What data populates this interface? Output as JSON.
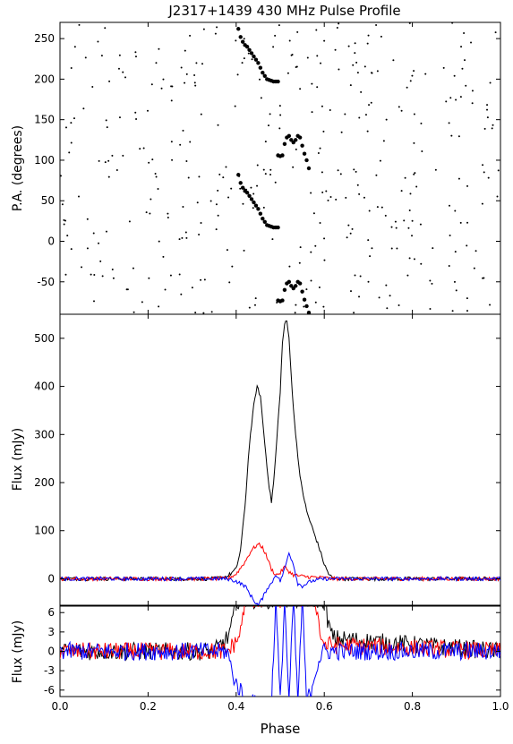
{
  "chart_data": [
    {
      "type": "scatter",
      "title": "J2317+1439 430 MHz Pulse Profile",
      "ylabel": "P.A. (degrees)",
      "xlim": [
        0.0,
        1.0
      ],
      "ylim": [
        -90,
        270
      ],
      "yticks": [
        -50,
        0,
        50,
        100,
        150,
        200,
        250
      ],
      "grid": false,
      "series": [
        {
          "role": "pa-main",
          "points": [
            [
              0.405,
              262
            ],
            [
              0.41,
              252
            ],
            [
              0.415,
              246
            ],
            [
              0.42,
              242
            ],
            [
              0.425,
              240
            ],
            [
              0.43,
              236
            ],
            [
              0.435,
              232
            ],
            [
              0.44,
              228
            ],
            [
              0.445,
              224
            ],
            [
              0.45,
              220
            ],
            [
              0.455,
              214
            ],
            [
              0.46,
              208
            ],
            [
              0.465,
              204
            ],
            [
              0.47,
              200
            ],
            [
              0.475,
              199
            ],
            [
              0.48,
              198
            ],
            [
              0.485,
              197
            ],
            [
              0.49,
              197
            ],
            [
              0.495,
              197
            ],
            [
              0.405,
              82
            ],
            [
              0.41,
              72
            ],
            [
              0.415,
              66
            ],
            [
              0.42,
              62
            ],
            [
              0.425,
              60
            ],
            [
              0.43,
              56
            ],
            [
              0.435,
              52
            ],
            [
              0.44,
              48
            ],
            [
              0.445,
              44
            ],
            [
              0.45,
              40
            ],
            [
              0.455,
              34
            ],
            [
              0.46,
              28
            ],
            [
              0.465,
              24
            ],
            [
              0.47,
              20
            ],
            [
              0.475,
              19
            ],
            [
              0.48,
              18
            ],
            [
              0.485,
              17
            ],
            [
              0.49,
              17
            ],
            [
              0.495,
              17
            ]
          ]
        },
        {
          "role": "pa-second",
          "points": [
            [
              0.495,
              106
            ],
            [
              0.5,
              105
            ],
            [
              0.505,
              106
            ],
            [
              0.51,
              120
            ],
            [
              0.515,
              128
            ],
            [
              0.52,
              130
            ],
            [
              0.525,
              125
            ],
            [
              0.53,
              122
            ],
            [
              0.535,
              125
            ],
            [
              0.54,
              130
            ],
            [
              0.545,
              128
            ],
            [
              0.55,
              118
            ],
            [
              0.555,
              108
            ],
            [
              0.56,
              100
            ],
            [
              0.565,
              90
            ],
            [
              0.495,
              -73
            ],
            [
              0.5,
              -74
            ],
            [
              0.505,
              -73
            ],
            [
              0.51,
              -60
            ],
            [
              0.515,
              -52
            ],
            [
              0.52,
              -50
            ],
            [
              0.525,
              -55
            ],
            [
              0.53,
              -58
            ],
            [
              0.535,
              -55
            ],
            [
              0.54,
              -50
            ],
            [
              0.545,
              -52
            ],
            [
              0.55,
              -62
            ],
            [
              0.555,
              -72
            ],
            [
              0.56,
              -80
            ],
            [
              0.565,
              -88
            ]
          ]
        }
      ]
    },
    {
      "type": "line",
      "ylabel": "Flux (mJy)",
      "xlim": [
        0.0,
        1.0
      ],
      "ylim": [
        -55,
        550
      ],
      "yticks": [
        0,
        100,
        200,
        300,
        400,
        500
      ],
      "grid": false,
      "series": [
        {
          "color": "#000000",
          "x": [
            0.0,
            0.35,
            0.38,
            0.4,
            0.41,
            0.42,
            0.43,
            0.44,
            0.447,
            0.455,
            0.465,
            0.475,
            0.48,
            0.485,
            0.49,
            0.5,
            0.505,
            0.51,
            0.515,
            0.52,
            0.53,
            0.545,
            0.56,
            0.575,
            0.59,
            0.6,
            0.61,
            0.62,
            1.0
          ],
          "y": [
            0,
            0,
            5,
            20,
            60,
            150,
            280,
            360,
            400,
            380,
            280,
            190,
            160,
            200,
            260,
            390,
            490,
            530,
            535,
            500,
            350,
            210,
            140,
            100,
            60,
            30,
            10,
            0,
            0
          ]
        },
        {
          "color": "#ff0000",
          "x": [
            0.0,
            0.38,
            0.4,
            0.42,
            0.435,
            0.45,
            0.46,
            0.47,
            0.48,
            0.49,
            0.5,
            0.51,
            0.52,
            0.53,
            0.55,
            0.58,
            0.6,
            0.62,
            1.0
          ],
          "y": [
            0,
            0,
            10,
            35,
            60,
            72,
            65,
            45,
            20,
            8,
            12,
            25,
            15,
            8,
            5,
            3,
            2,
            0,
            0
          ]
        },
        {
          "color": "#0000ff",
          "x": [
            0.0,
            0.38,
            0.4,
            0.42,
            0.43,
            0.44,
            0.45,
            0.46,
            0.47,
            0.48,
            0.49,
            0.5,
            0.51,
            0.52,
            0.53,
            0.54,
            0.55,
            0.57,
            0.6,
            1.0
          ],
          "y": [
            0,
            0,
            -5,
            -15,
            -30,
            -45,
            -55,
            -40,
            -20,
            -10,
            10,
            -5,
            20,
            55,
            30,
            -10,
            -15,
            -5,
            0,
            0
          ]
        }
      ]
    },
    {
      "type": "line",
      "ylabel": "Flux (mJy)",
      "xlabel": "Phase",
      "xlim": [
        0.0,
        1.0
      ],
      "ylim": [
        -7,
        7
      ],
      "yticks": [
        -6,
        -3,
        0,
        3,
        6
      ],
      "xticks": [
        0.0,
        0.2,
        0.4,
        0.6,
        0.8,
        1.0
      ],
      "grid": false,
      "series": [
        {
          "color": "#000000",
          "x": [
            0.0,
            0.35,
            0.38,
            0.39,
            0.4,
            0.6,
            0.61,
            0.62,
            1.0
          ],
          "y": [
            0,
            0,
            2,
            4,
            8,
            8,
            4,
            2,
            0
          ]
        },
        {
          "color": "#ff0000",
          "x": [
            0.0,
            0.38,
            0.4,
            0.41,
            0.42,
            0.43,
            0.44,
            0.58,
            0.59,
            0.6,
            1.0
          ],
          "y": [
            0,
            0,
            1.5,
            3,
            8,
            8,
            8,
            8,
            3,
            1,
            0
          ]
        },
        {
          "color": "#0000ff",
          "x": [
            0.0,
            0.38,
            0.39,
            0.4,
            0.41,
            0.42,
            0.47,
            0.48,
            0.49,
            0.5,
            0.51,
            0.52,
            0.53,
            0.54,
            0.55,
            0.56,
            0.57,
            0.58,
            0.59,
            0.6,
            1.0
          ],
          "y": [
            0,
            0,
            -3,
            -5,
            -6,
            -8,
            -8,
            -8,
            8,
            -8,
            8,
            -8,
            8,
            -8,
            8,
            -8,
            -6,
            -3,
            -1,
            0,
            0
          ]
        }
      ]
    }
  ]
}
